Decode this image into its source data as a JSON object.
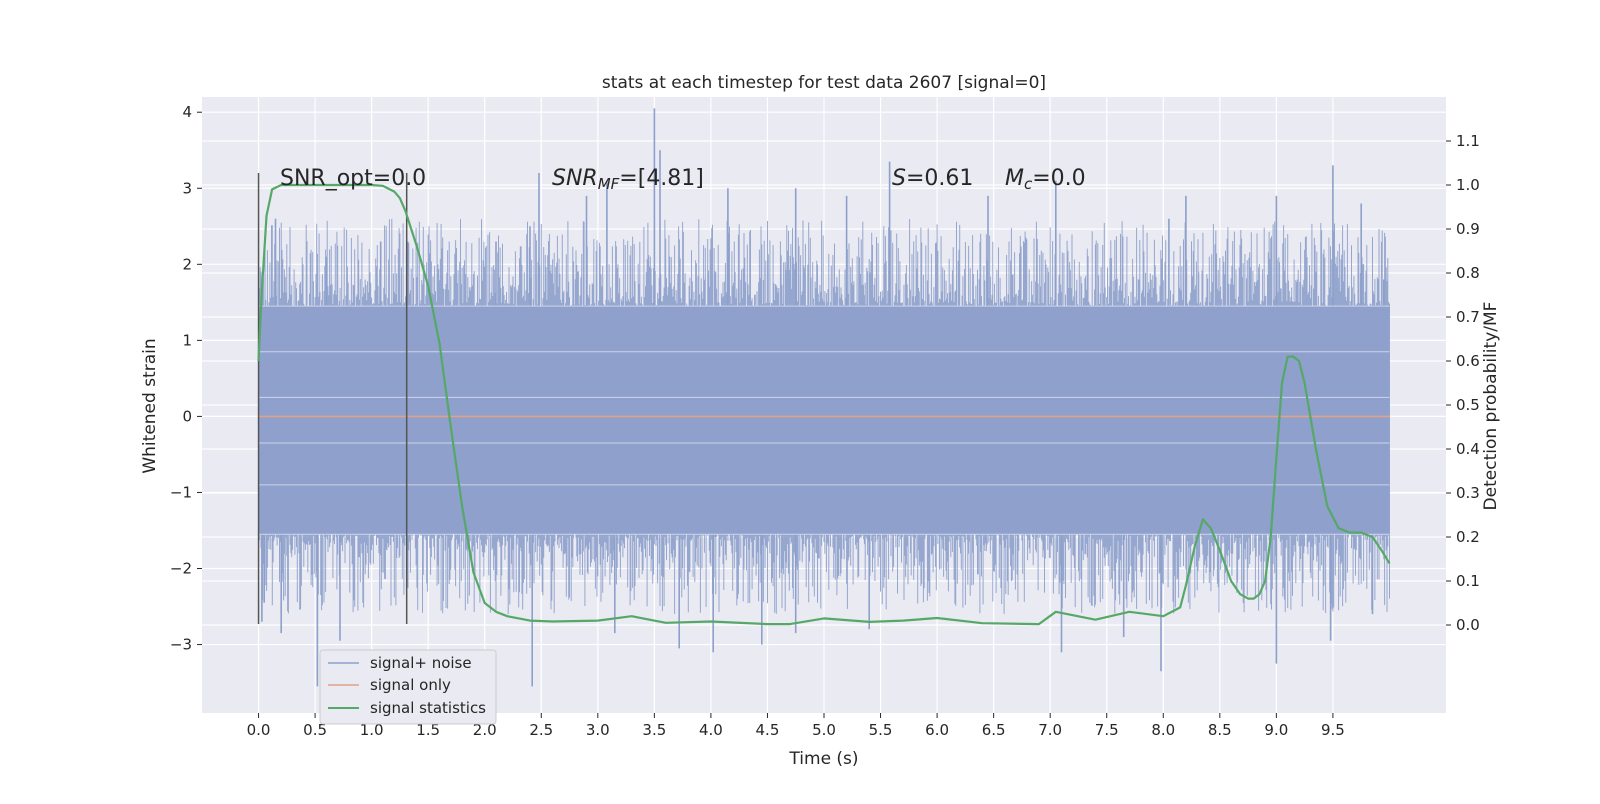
{
  "chart_data": {
    "type": "line",
    "title": "stats at each timestep for test data 2607 [signal=0]",
    "xlabel": "Time (s)",
    "ylabel": "Whitened strain",
    "ylabel_right": "Detection probability/MF",
    "xlim": [
      -0.5,
      10.5
    ],
    "ylim": [
      -3.9,
      4.2
    ],
    "ylim_right": [
      -0.2,
      1.2
    ],
    "x_ticks": [
      "0.0",
      "0.5",
      "1.0",
      "1.5",
      "2.0",
      "2.5",
      "3.0",
      "3.5",
      "4.0",
      "4.5",
      "5.0",
      "5.5",
      "6.0",
      "6.5",
      "7.0",
      "7.5",
      "8.0",
      "8.5",
      "9.0",
      "9.5"
    ],
    "y_ticks": [
      "−3",
      "−2",
      "−1",
      "0",
      "1",
      "2",
      "3",
      "4"
    ],
    "y_ticks_right": [
      "0.0",
      "0.1",
      "0.2",
      "0.3",
      "0.4",
      "0.5",
      "0.6",
      "0.7",
      "0.8",
      "0.9",
      "1.0",
      "1.1"
    ],
    "grid": true,
    "legend_position": "lower-left",
    "annotations": {
      "snr_opt": "SNR_opt=0.0",
      "snr_mf_main": "SNR",
      "snr_mf_sub": "MF",
      "snr_mf_tail": "=[4.81]",
      "s_main": "S",
      "s_tail": "=0.61",
      "mc_main": "M",
      "mc_sub": "c",
      "mc_tail": "=0.0"
    },
    "vertical_markers_x": [
      0.0,
      1.31
    ],
    "series": [
      {
        "name": "signal+ noise",
        "color": "#8da0cb",
        "axis": "left",
        "time_range": [
          0.0,
          10.0
        ],
        "envelope_top": 1.45,
        "envelope_bottom": -1.55,
        "spike_peaks_top": [
          {
            "x": 0.03,
            "y": 1.6
          },
          {
            "x": 0.15,
            "y": 2.6
          },
          {
            "x": 0.6,
            "y": 2.1
          },
          {
            "x": 1.08,
            "y": 2.3
          },
          {
            "x": 1.32,
            "y": 2.3
          },
          {
            "x": 2.1,
            "y": 2.3
          },
          {
            "x": 2.4,
            "y": 2.5
          },
          {
            "x": 2.48,
            "y": 3.2
          },
          {
            "x": 2.9,
            "y": 2.9
          },
          {
            "x": 3.08,
            "y": 3.1
          },
          {
            "x": 3.5,
            "y": 4.05
          },
          {
            "x": 3.55,
            "y": 3.5
          },
          {
            "x": 4.15,
            "y": 3.0
          },
          {
            "x": 4.75,
            "y": 3.0
          },
          {
            "x": 5.2,
            "y": 2.9
          },
          {
            "x": 5.58,
            "y": 3.35
          },
          {
            "x": 6.45,
            "y": 2.9
          },
          {
            "x": 7.05,
            "y": 3.1
          },
          {
            "x": 8.05,
            "y": 2.6
          },
          {
            "x": 8.2,
            "y": 2.9
          },
          {
            "x": 9.0,
            "y": 2.9
          },
          {
            "x": 9.5,
            "y": 3.3
          },
          {
            "x": 9.75,
            "y": 2.8
          },
          {
            "x": 9.95,
            "y": 1.8
          }
        ],
        "spike_peaks_bottom": [
          {
            "x": 0.03,
            "y": -2.7
          },
          {
            "x": 0.05,
            "y": -2.45
          },
          {
            "x": 0.2,
            "y": -2.85
          },
          {
            "x": 0.52,
            "y": -3.55
          },
          {
            "x": 0.72,
            "y": -2.95
          },
          {
            "x": 2.42,
            "y": -3.55
          },
          {
            "x": 3.15,
            "y": -2.85
          },
          {
            "x": 3.72,
            "y": -3.05
          },
          {
            "x": 4.02,
            "y": -3.1
          },
          {
            "x": 4.45,
            "y": -3.0
          },
          {
            "x": 4.75,
            "y": -2.85
          },
          {
            "x": 5.4,
            "y": -2.8
          },
          {
            "x": 7.1,
            "y": -3.1
          },
          {
            "x": 7.65,
            "y": -2.9
          },
          {
            "x": 7.98,
            "y": -3.35
          },
          {
            "x": 9.0,
            "y": -3.25
          },
          {
            "x": 9.48,
            "y": -2.95
          },
          {
            "x": 9.85,
            "y": -2.6
          }
        ]
      },
      {
        "name": "signal only",
        "color": "#e5a088",
        "axis": "left",
        "x": [
          0.0,
          10.0
        ],
        "y": [
          0.0,
          0.0
        ]
      },
      {
        "name": "signal statistics",
        "color": "#55a868",
        "axis": "right",
        "x": [
          0.0,
          0.03,
          0.07,
          0.12,
          0.2,
          0.3,
          0.5,
          0.8,
          1.0,
          1.1,
          1.2,
          1.25,
          1.3,
          1.35,
          1.4,
          1.5,
          1.6,
          1.7,
          1.8,
          1.9,
          2.0,
          2.1,
          2.2,
          2.4,
          2.6,
          3.0,
          3.3,
          3.6,
          4.0,
          4.5,
          4.7,
          5.0,
          5.4,
          5.7,
          6.0,
          6.4,
          6.9,
          7.05,
          7.4,
          7.7,
          8.0,
          8.15,
          8.2,
          8.28,
          8.35,
          8.42,
          8.5,
          8.6,
          8.68,
          8.75,
          8.8,
          8.85,
          8.9,
          8.95,
          9.0,
          9.05,
          9.1,
          9.15,
          9.2,
          9.25,
          9.35,
          9.45,
          9.55,
          9.65,
          9.75,
          9.85,
          9.93,
          10.0
        ],
        "y": [
          0.6,
          0.76,
          0.93,
          0.99,
          1.0,
          1.0,
          1.0,
          1.0,
          1.0,
          0.998,
          0.985,
          0.97,
          0.94,
          0.9,
          0.86,
          0.77,
          0.64,
          0.45,
          0.27,
          0.12,
          0.05,
          0.03,
          0.02,
          0.01,
          0.008,
          0.01,
          0.02,
          0.005,
          0.008,
          0.002,
          0.002,
          0.015,
          0.007,
          0.01,
          0.016,
          0.004,
          0.002,
          0.03,
          0.012,
          0.03,
          0.02,
          0.04,
          0.09,
          0.18,
          0.24,
          0.22,
          0.17,
          0.1,
          0.07,
          0.06,
          0.06,
          0.07,
          0.1,
          0.2,
          0.38,
          0.55,
          0.61,
          0.61,
          0.6,
          0.55,
          0.4,
          0.27,
          0.22,
          0.21,
          0.21,
          0.2,
          0.17,
          0.14
        ]
      }
    ]
  }
}
